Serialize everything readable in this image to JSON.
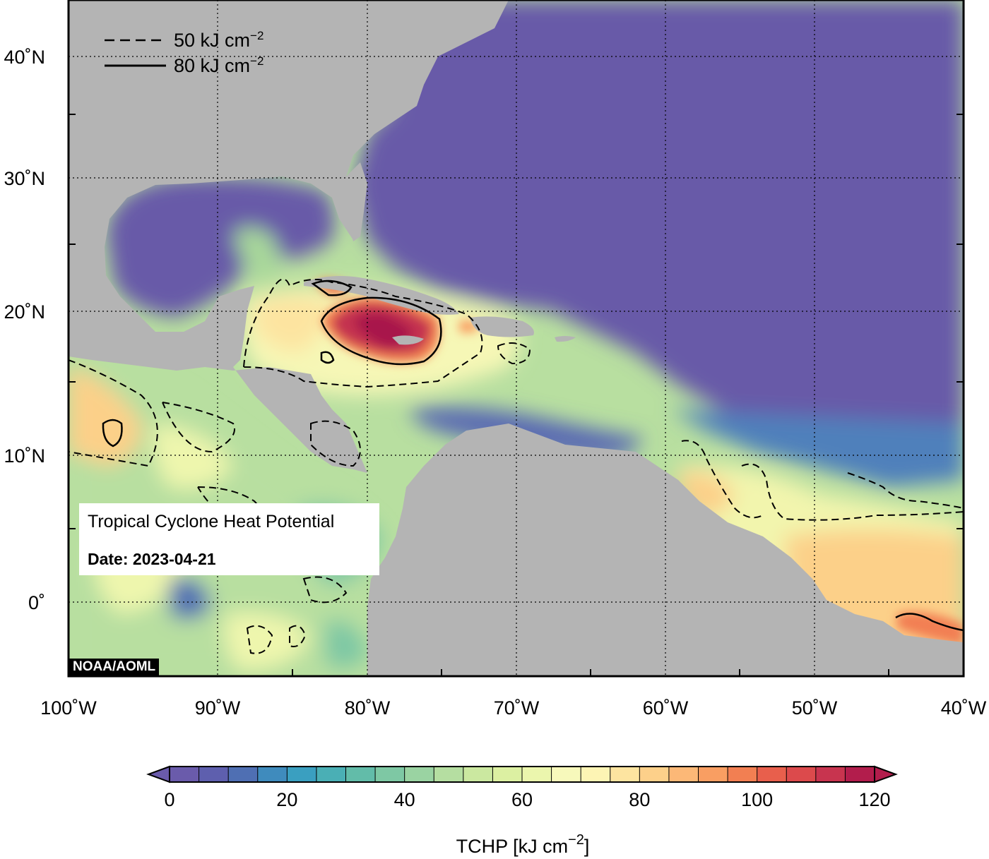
{
  "info_box": {
    "title": "Tropical Cyclone Heat Potential",
    "date_label": "Date: 2023-04-21"
  },
  "credit": "NOAA/AOML",
  "legend": {
    "items": [
      {
        "style": "dashed",
        "label": "50 kJ cm",
        "exp": "−2"
      },
      {
        "style": "solid",
        "label": "80 kJ cm",
        "exp": "−2"
      }
    ]
  },
  "axes": {
    "lon_ticks": [
      "100˚W",
      "90˚W",
      "80˚W",
      "70˚W",
      "60˚W",
      "50˚W",
      "40˚W"
    ],
    "lat_ticks": [
      "40˚N",
      "30˚N",
      "20˚N",
      "10˚N",
      "0˚"
    ]
  },
  "colorbar": {
    "title": "TCHP [kJ cm",
    "title_exp": "−2",
    "title_close": "]",
    "tick_labels": [
      "0",
      "20",
      "40",
      "60",
      "80",
      "100",
      "120"
    ],
    "min": 0,
    "max": 120,
    "step": 5,
    "colors": [
      "#6a5bab",
      "#5e5fae",
      "#4f6fb3",
      "#3f8bbd",
      "#3a9fc0",
      "#4aafb5",
      "#62bca9",
      "#7ec8a4",
      "#9ad3a2",
      "#b5dea1",
      "#cbe8a0",
      "#dcf0a2",
      "#ebf6ad",
      "#f7f9bb",
      "#fdf4b4",
      "#fde4a0",
      "#fdd08a",
      "#fcb877",
      "#f99e62",
      "#f27f52",
      "#e85f4c",
      "#dc4a4c",
      "#c8344f",
      "#b21d4c"
    ]
  },
  "colors": {
    "land": "#b4b4b4",
    "ocean_low": "#675aa8",
    "ocean_mid": "#a8da9c",
    "ocean_warm": "#f4f6b0",
    "hot": "#b2184c"
  }
}
